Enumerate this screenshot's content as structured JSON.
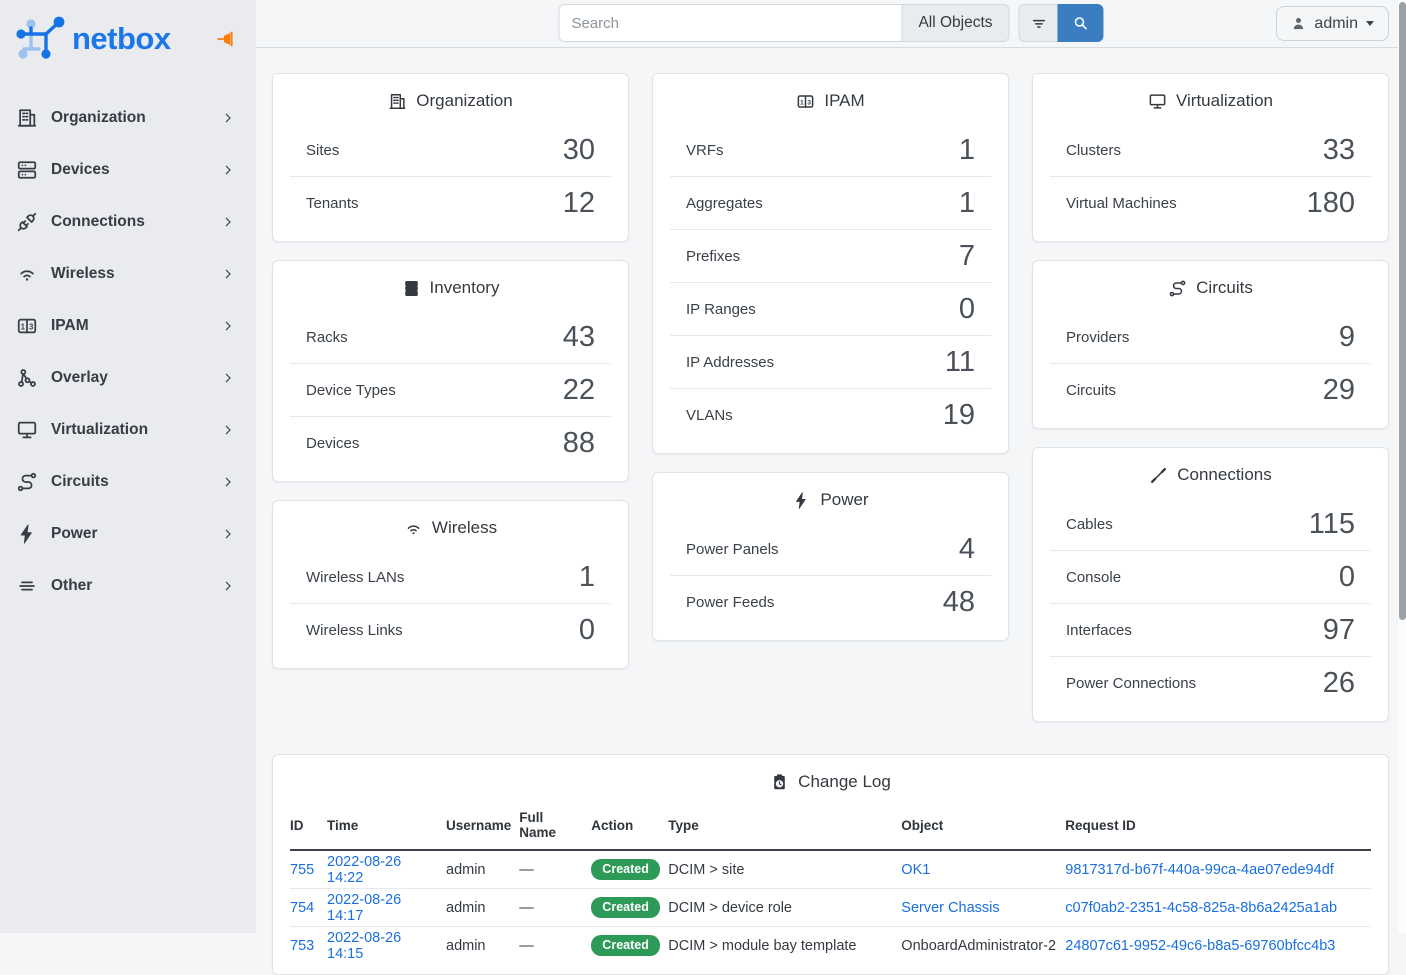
{
  "colors": {
    "link": "#1a6fe0",
    "primary_button": "#3b7dc1",
    "badge_created": "#2e9a58",
    "pin": "#f97f11",
    "logo": "#1c78e8"
  },
  "sidebar": {
    "logo_text": "netbox",
    "items": [
      {
        "label": "Organization",
        "icon": "building-icon"
      },
      {
        "label": "Devices",
        "icon": "server-icon"
      },
      {
        "label": "Connections",
        "icon": "plug-icon"
      },
      {
        "label": "Wireless",
        "icon": "wifi-icon"
      },
      {
        "label": "IPAM",
        "icon": "ip-boxes-icon"
      },
      {
        "label": "Overlay",
        "icon": "graph-icon"
      },
      {
        "label": "Virtualization",
        "icon": "monitor-icon"
      },
      {
        "label": "Circuits",
        "icon": "route-icon"
      },
      {
        "label": "Power",
        "icon": "bolt-icon"
      },
      {
        "label": "Other",
        "icon": "lines-icon"
      }
    ]
  },
  "topbar": {
    "search_placeholder": "Search",
    "scope_label": "All Objects",
    "user": {
      "label": "admin"
    }
  },
  "dashboard": {
    "columns": [
      [
        "organization",
        "inventory",
        "wireless"
      ],
      [
        "ipam",
        "power"
      ],
      [
        "virtualization",
        "circuits",
        "connections"
      ]
    ],
    "cards": {
      "organization": {
        "title": "Organization",
        "icon": "building-icon",
        "stats": [
          {
            "label": "Sites",
            "value": "30"
          },
          {
            "label": "Tenants",
            "value": "12"
          }
        ]
      },
      "inventory": {
        "title": "Inventory",
        "icon": "rack-icon",
        "stats": [
          {
            "label": "Racks",
            "value": "43"
          },
          {
            "label": "Device Types",
            "value": "22"
          },
          {
            "label": "Devices",
            "value": "88"
          }
        ]
      },
      "wireless": {
        "title": "Wireless",
        "icon": "wifi-icon",
        "stats": [
          {
            "label": "Wireless LANs",
            "value": "1"
          },
          {
            "label": "Wireless Links",
            "value": "0"
          }
        ]
      },
      "ipam": {
        "title": "IPAM",
        "icon": "ip-boxes-icon",
        "stats": [
          {
            "label": "VRFs",
            "value": "1"
          },
          {
            "label": "Aggregates",
            "value": "1"
          },
          {
            "label": "Prefixes",
            "value": "7"
          },
          {
            "label": "IP Ranges",
            "value": "0"
          },
          {
            "label": "IP Addresses",
            "value": "11"
          },
          {
            "label": "VLANs",
            "value": "19"
          }
        ]
      },
      "power": {
        "title": "Power",
        "icon": "bolt-icon",
        "stats": [
          {
            "label": "Power Panels",
            "value": "4"
          },
          {
            "label": "Power Feeds",
            "value": "48"
          }
        ]
      },
      "virtualization": {
        "title": "Virtualization",
        "icon": "monitor-icon",
        "stats": [
          {
            "label": "Clusters",
            "value": "33"
          },
          {
            "label": "Virtual Machines",
            "value": "180"
          }
        ]
      },
      "circuits": {
        "title": "Circuits",
        "icon": "route-icon",
        "stats": [
          {
            "label": "Providers",
            "value": "9"
          },
          {
            "label": "Circuits",
            "value": "29"
          }
        ]
      },
      "connections": {
        "title": "Connections",
        "icon": "cable-icon",
        "stats": [
          {
            "label": "Cables",
            "value": "115"
          },
          {
            "label": "Console",
            "value": "0"
          },
          {
            "label": "Interfaces",
            "value": "97"
          },
          {
            "label": "Power Connections",
            "value": "26"
          }
        ]
      }
    }
  },
  "changelog": {
    "title": "Change Log",
    "icon": "clipboard-clock-icon",
    "columns": [
      "ID",
      "Time",
      "Username",
      "Full Name",
      "Action",
      "Type",
      "Object",
      "Request ID"
    ],
    "rows": [
      {
        "id": "755",
        "time": "2022-08-26 14:22",
        "username": "admin",
        "full_name": "—",
        "action": "Created",
        "type": "DCIM > site",
        "object": "OK1",
        "object_link": true,
        "request_id": "9817317d-b67f-440a-99ca-4ae07ede94df"
      },
      {
        "id": "754",
        "time": "2022-08-26 14:17",
        "username": "admin",
        "full_name": "—",
        "action": "Created",
        "type": "DCIM > device role",
        "object": "Server Chassis",
        "object_link": true,
        "request_id": "c07f0ab2-2351-4c58-825a-8b6a2425a1ab"
      },
      {
        "id": "753",
        "time": "2022-08-26 14:15",
        "username": "admin",
        "full_name": "—",
        "action": "Created",
        "type": "DCIM > module bay template",
        "object": "OnboardAdministrator-2",
        "object_link": false,
        "request_id": "24807c61-9952-49c6-b8a5-69760bfcc4b3"
      }
    ]
  }
}
